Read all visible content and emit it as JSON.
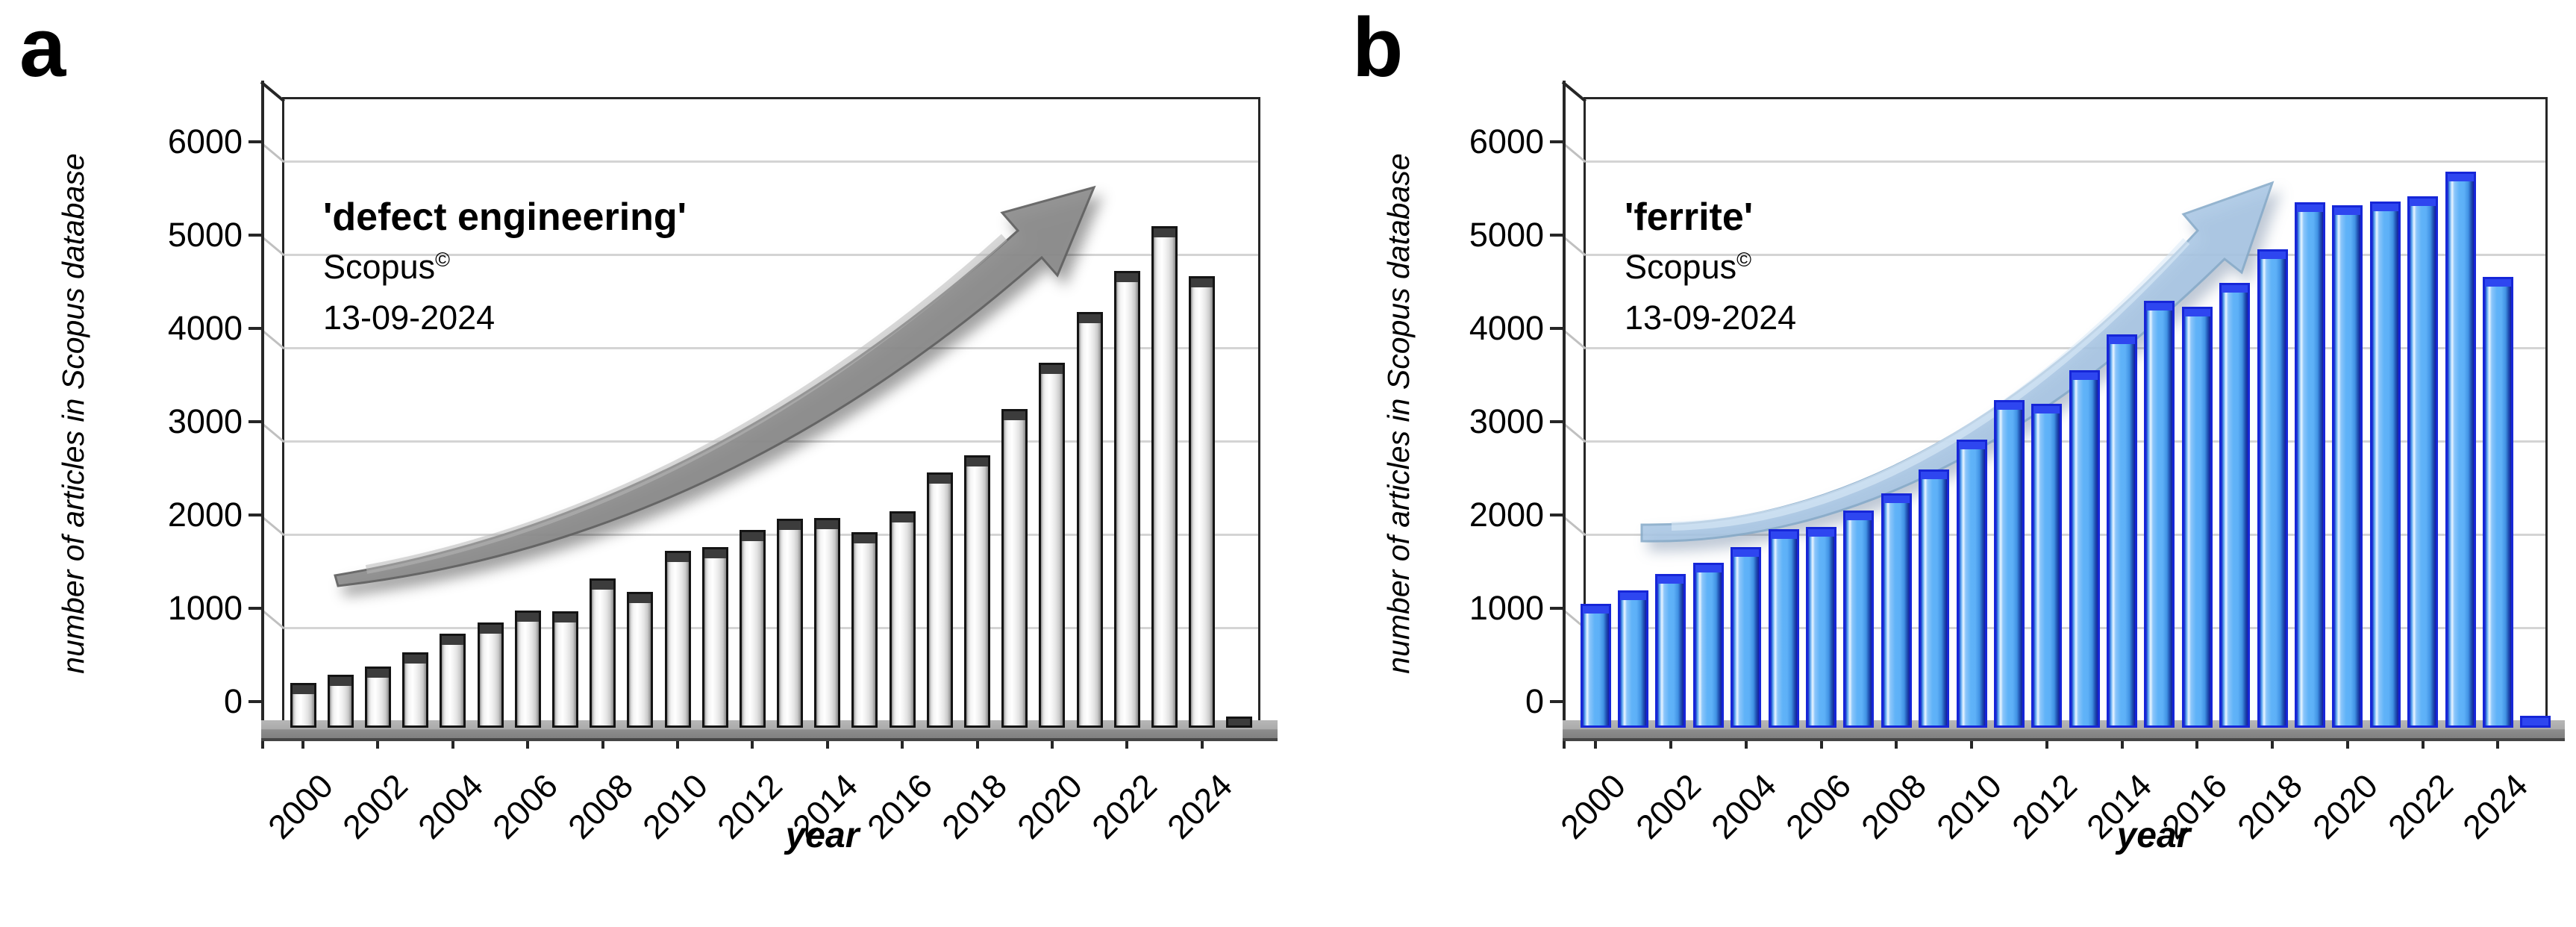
{
  "figure_background": "#ffffff",
  "chart_data": [
    {
      "type": "bar",
      "panel_label": "a",
      "title": "'defect engineering'",
      "source_line": "Scopus",
      "source_superscript": "©",
      "date_line": "13-09-2024",
      "xlabel": "year",
      "ylabel": "number of articles in Scopus database",
      "ylim": [
        0,
        6650
      ],
      "ytick_step": 1000,
      "ytick_labels": [
        "0",
        "1000",
        "2000",
        "3000",
        "4000",
        "5000",
        "6000"
      ],
      "grid": true,
      "legend": "none",
      "categories": [
        2000,
        2001,
        2002,
        2003,
        2004,
        2005,
        2006,
        2007,
        2008,
        2009,
        2010,
        2011,
        2012,
        2013,
        2014,
        2015,
        2016,
        2017,
        2018,
        2019,
        2020,
        2021,
        2022,
        2023,
        2024,
        2025
      ],
      "xtick_labels": [
        "2000",
        "2002",
        "2004",
        "2006",
        "2008",
        "2010",
        "2012",
        "2014",
        "2016",
        "2018",
        "2020",
        "2022",
        "2024"
      ],
      "values": [
        400,
        490,
        580,
        730,
        930,
        1050,
        1180,
        1170,
        1520,
        1380,
        1820,
        1860,
        2040,
        2160,
        2170,
        2020,
        2240,
        2660,
        2840,
        3340,
        3830,
        4380,
        4820,
        5300,
        4760,
        40
      ],
      "bar_fill_color": "#e8e8e8",
      "bar_border_color": "#141414",
      "arrow_color": "#8c8c8c",
      "arrow_outline_color": "#606060",
      "arrow_highlight_color": "#b8b8b8"
    },
    {
      "type": "bar",
      "panel_label": "b",
      "title": "'ferrite'",
      "source_line": "Scopus",
      "source_superscript": "©",
      "date_line": "13-09-2024",
      "xlabel": "year",
      "ylabel": "number of articles in Scopus database",
      "ylim": [
        0,
        6650
      ],
      "ytick_step": 1000,
      "ytick_labels": [
        "0",
        "1000",
        "2000",
        "3000",
        "4000",
        "5000",
        "6000"
      ],
      "grid": true,
      "legend": "none",
      "categories": [
        2000,
        2001,
        2002,
        2003,
        2004,
        2005,
        2006,
        2007,
        2008,
        2009,
        2010,
        2011,
        2012,
        2013,
        2014,
        2015,
        2016,
        2017,
        2018,
        2019,
        2020,
        2021,
        2022,
        2023,
        2024,
        2025
      ],
      "xtick_labels": [
        "2000",
        "2002",
        "2004",
        "2006",
        "2008",
        "2010",
        "2012",
        "2014",
        "2016",
        "2018",
        "2020",
        "2022",
        "2024"
      ],
      "values": [
        1250,
        1390,
        1570,
        1690,
        1860,
        2050,
        2070,
        2250,
        2430,
        2690,
        3010,
        3430,
        3390,
        3750,
        4140,
        4500,
        4430,
        4690,
        5050,
        5550,
        5520,
        5560,
        5620,
        5880,
        4750,
        50
      ],
      "bar_fill_color": "#60b3f8",
      "bar_border_color": "#1626d8",
      "arrow_color": "#a9c7e4",
      "arrow_outline_color": "#86aac9",
      "arrow_highlight_color": "#dcebf8"
    }
  ]
}
